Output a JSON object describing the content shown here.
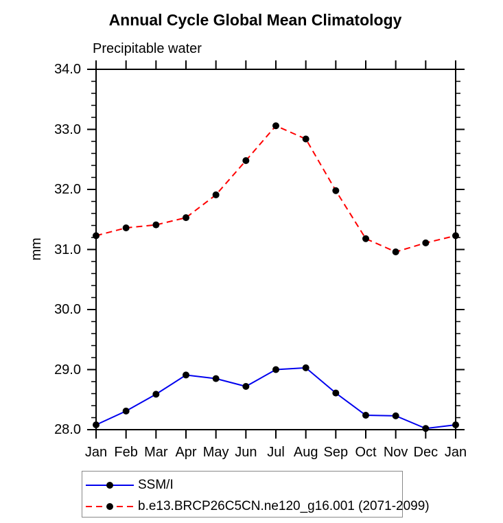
{
  "chart_data": {
    "type": "line",
    "title": "Annual Cycle Global Mean Climatology",
    "subtitle": "Precipitable water",
    "ylabel": "mm",
    "xlabel": "",
    "categories": [
      "Jan",
      "Feb",
      "Mar",
      "Apr",
      "May",
      "Jun",
      "Jul",
      "Aug",
      "Sep",
      "Oct",
      "Nov",
      "Dec",
      "Jan"
    ],
    "ylim": [
      28.0,
      34.0
    ],
    "y_tick_values": [
      28,
      29,
      30,
      31,
      32,
      33,
      34
    ],
    "y_tick_labels": [
      "28.0",
      "29.0",
      "30.0",
      "31.0",
      "32.0",
      "33.0",
      "34.0"
    ],
    "y_minor_step": 0.2,
    "grid": false,
    "legend_position": "bottom-left",
    "frame_color": "#000000",
    "marker": {
      "shape": "circle",
      "color": "#000000",
      "radius": 5
    },
    "series": [
      {
        "name": "SSM/I",
        "color": "#0000ee",
        "line_style": "solid",
        "values": [
          28.08,
          28.31,
          28.59,
          28.91,
          28.85,
          28.72,
          29.0,
          29.03,
          28.61,
          28.24,
          28.23,
          28.02,
          28.08
        ]
      },
      {
        "name": "b.e13.BRCP26C5CN.ne120_g16.001 (2071-2099)",
        "color": "#ff0000",
        "line_style": "dashed",
        "values": [
          31.23,
          31.36,
          31.41,
          31.53,
          31.91,
          32.48,
          33.06,
          32.84,
          31.98,
          31.18,
          30.96,
          31.11,
          31.23
        ]
      }
    ]
  }
}
